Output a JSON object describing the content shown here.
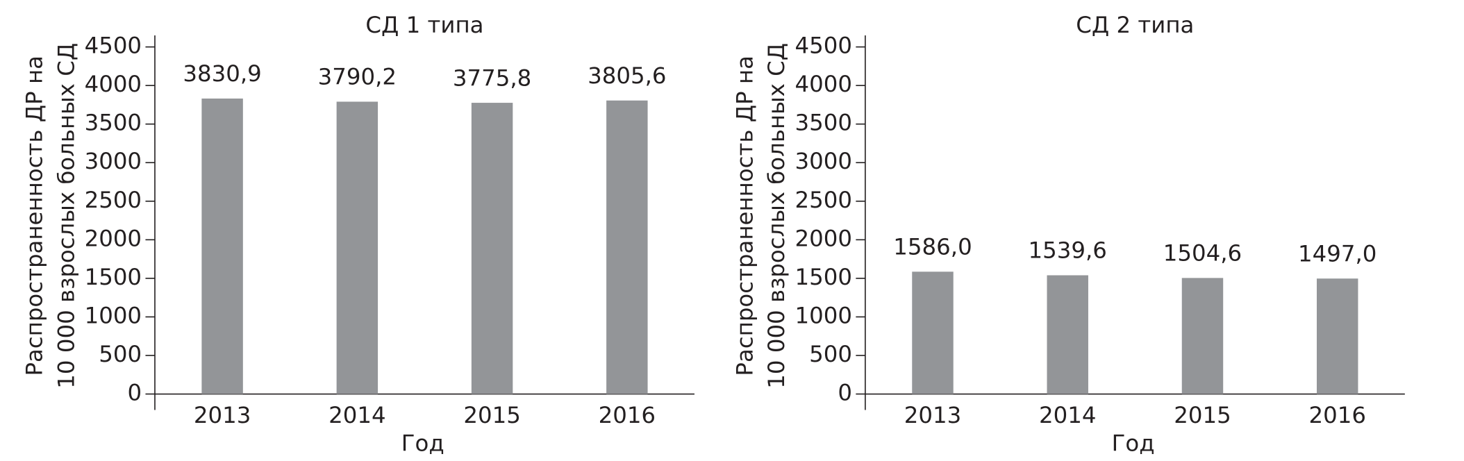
{
  "chart_data": [
    {
      "type": "bar",
      "title": "СД 1 типа",
      "ylabel": [
        "Распространенность ДР на",
        "10 000 взрослых больных СД"
      ],
      "xlabel": "Год",
      "categories": [
        "2013",
        "2014",
        "2015",
        "2016"
      ],
      "values": [
        3830.9,
        3790.2,
        3775.8,
        3805.6
      ],
      "value_labels": [
        "3830,9",
        "3790,2",
        "3775,8",
        "3805,6"
      ],
      "color": "#939598",
      "ylim": [
        0,
        4650
      ],
      "yticks": [
        0,
        500,
        1000,
        1500,
        2000,
        2500,
        3000,
        3500,
        4000,
        4500
      ]
    },
    {
      "type": "bar",
      "title": "СД 2 типа",
      "ylabel": [
        "Распространенность ДР на",
        "10 000 взрослых больных СД"
      ],
      "xlabel": "Год",
      "categories": [
        "2013",
        "2014",
        "2015",
        "2016"
      ],
      "values": [
        1586.0,
        1539.6,
        1504.6,
        1497.0
      ],
      "value_labels": [
        "1586,0",
        "1539,6",
        "1504,6",
        "1497,0"
      ],
      "color": "#939598",
      "ylim": [
        0,
        4650
      ],
      "yticks": [
        0,
        500,
        1000,
        1500,
        2000,
        2500,
        3000,
        3500,
        4000,
        4500
      ]
    }
  ]
}
